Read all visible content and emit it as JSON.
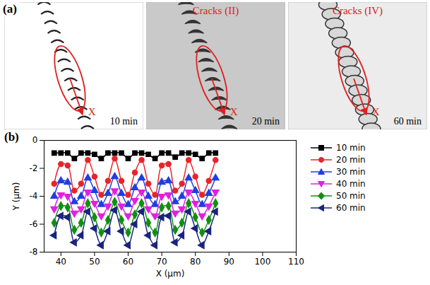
{
  "image_panel": {
    "label": "(a)",
    "images": [
      {
        "time": "10 min",
        "axis_mark": "X"
      },
      {
        "time": "20 min",
        "title": "Cracks (II)",
        "axis_mark": "X"
      },
      {
        "time": "60 min",
        "title": "Cracks (IV)",
        "axis_mark": "X"
      }
    ]
  },
  "chart_data": {
    "type": "line",
    "panel_label": "(b)",
    "x_label": "X (μm)",
    "y_label": "Y (μm)",
    "x": [
      38,
      40,
      42,
      44,
      46,
      48,
      50,
      52,
      54,
      56,
      58,
      60,
      62,
      64,
      66,
      68,
      70,
      72,
      74,
      76,
      78,
      80,
      82,
      84,
      86
    ],
    "series": [
      {
        "name": "10 min",
        "color": "#000000",
        "marker": "square",
        "values": [
          -0.9,
          -0.9,
          -0.9,
          -1.3,
          -0.9,
          -0.9,
          -1.0,
          -1.3,
          -0.9,
          -0.9,
          -0.9,
          -1.3,
          -0.9,
          -0.9,
          -1.0,
          -1.3,
          -0.9,
          -0.9,
          -1.2,
          -0.9,
          -0.9,
          -1.0,
          -1.3,
          -0.9,
          -0.9
        ]
      },
      {
        "name": "20 min",
        "color": "#e8242a",
        "marker": "circle",
        "values": [
          -3.1,
          -1.7,
          -1.8,
          -3.6,
          -3.1,
          -1.4,
          -2.6,
          -3.9,
          -2.9,
          -1.3,
          -2.9,
          -3.9,
          -2.3,
          -1.4,
          -3.1,
          -3.9,
          -1.8,
          -1.7,
          -3.6,
          -3.1,
          -1.4,
          -2.6,
          -3.9,
          -2.9,
          -1.4
        ]
      },
      {
        "name": "30 min",
        "color": "#1f3fe0",
        "marker": "triangle",
        "values": [
          -4.0,
          -2.9,
          -3.0,
          -4.4,
          -4.0,
          -2.7,
          -3.6,
          -4.6,
          -3.8,
          -2.6,
          -3.8,
          -4.6,
          -3.4,
          -2.7,
          -4.0,
          -4.6,
          -3.0,
          -2.9,
          -4.4,
          -4.0,
          -2.7,
          -3.6,
          -4.6,
          -3.8,
          -2.7
        ]
      },
      {
        "name": "40 min",
        "color": "#e020e0",
        "marker": "triangle-down",
        "values": [
          -4.9,
          -3.9,
          -4.0,
          -5.2,
          -4.9,
          -3.7,
          -4.5,
          -5.4,
          -4.7,
          -3.6,
          -4.7,
          -5.4,
          -4.3,
          -3.7,
          -4.9,
          -5.4,
          -4.0,
          -3.9,
          -5.2,
          -4.9,
          -3.7,
          -4.5,
          -5.4,
          -4.7,
          -3.7
        ]
      },
      {
        "name": "50 min",
        "color": "#109010",
        "marker": "diamond",
        "values": [
          -5.9,
          -4.7,
          -4.8,
          -6.4,
          -5.9,
          -4.5,
          -5.5,
          -6.6,
          -5.7,
          -4.4,
          -5.7,
          -6.6,
          -5.3,
          -4.5,
          -5.9,
          -6.6,
          -4.8,
          -4.7,
          -6.4,
          -5.9,
          -4.5,
          -5.5,
          -6.6,
          -5.7,
          -4.5
        ]
      },
      {
        "name": "60 min",
        "color": "#1a237e",
        "marker": "triangle-left",
        "values": [
          -6.8,
          -5.4,
          -5.5,
          -7.3,
          -6.8,
          -5.1,
          -6.3,
          -7.5,
          -6.5,
          -5.0,
          -6.5,
          -7.5,
          -6.0,
          -5.1,
          -6.8,
          -7.5,
          -5.5,
          -5.4,
          -7.3,
          -6.8,
          -5.1,
          -6.3,
          -7.5,
          -6.5,
          -5.1
        ]
      }
    ],
    "xlim": [
      35,
      110
    ],
    "xticks": [
      40,
      50,
      60,
      70,
      80,
      90,
      100,
      110
    ],
    "ylim": [
      -8,
      0
    ],
    "yticks": [
      -8,
      -6,
      -4,
      -2,
      0
    ],
    "legend": "right"
  }
}
